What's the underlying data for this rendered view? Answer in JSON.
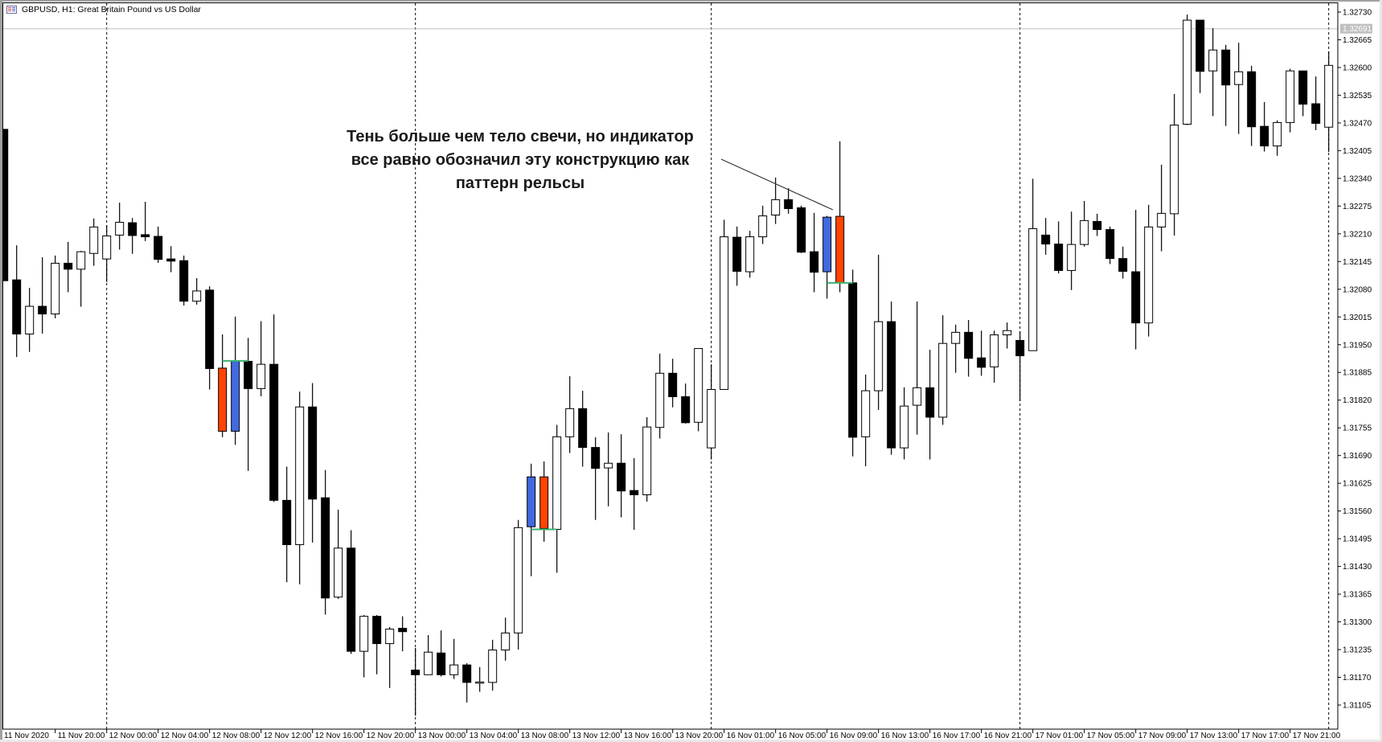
{
  "window": {
    "title": "GBPUSD, H1:  Great Britain Pound vs US Dollar",
    "icon": "chart-window-icon"
  },
  "annotation": {
    "lines": [
      "Тень больше чем тело свечи, но индикатор",
      "все равно обозначил эту конструкцию как",
      "паттерн рельсы"
    ]
  },
  "colors": {
    "bull_body": "#ffffff",
    "bear_body": "#000000",
    "rails_bull": "#4169e1",
    "rails_bear": "#ff4500",
    "rails_level": "#3cb371",
    "bid_line": "#c0c0c0"
  },
  "chart_data": {
    "type": "candlestick",
    "symbol": "GBPUSD",
    "timeframe": "H1",
    "ylim": [
      1.31105,
      1.3273
    ],
    "grid": false,
    "bid_label": "1.32691",
    "bid": 1.32691,
    "price_ticks": [
      "1.32730",
      "1.32665",
      "1.32600",
      "1.32535",
      "1.32470",
      "1.32405",
      "1.32340",
      "1.32275",
      "1.32210",
      "1.32145",
      "1.32080",
      "1.32015",
      "1.31950",
      "1.31885",
      "1.31820",
      "1.31755",
      "1.31690",
      "1.31625",
      "1.31560",
      "1.31495",
      "1.31430",
      "1.31365",
      "1.31300",
      "1.31235",
      "1.31170",
      "1.31105"
    ],
    "time_ticks": [
      "11 Nov 2020",
      "11 Nov 20:00",
      "12 Nov 00:00",
      "12 Nov 04:00",
      "12 Nov 08:00",
      "12 Nov 12:00",
      "12 Nov 16:00",
      "12 Nov 20:00",
      "13 Nov 00:00",
      "13 Nov 04:00",
      "13 Nov 08:00",
      "13 Nov 12:00",
      "13 Nov 16:00",
      "13 Nov 20:00",
      "16 Nov 01:00",
      "16 Nov 05:00",
      "16 Nov 09:00",
      "16 Nov 13:00",
      "16 Nov 17:00",
      "16 Nov 21:00",
      "17 Nov 01:00",
      "17 Nov 05:00",
      "17 Nov 09:00",
      "17 Nov 13:00",
      "17 Nov 17:00",
      "17 Nov 21:00"
    ],
    "ohlc_columns": [
      "open",
      "high",
      "low",
      "close"
    ],
    "candles": [
      [
        1.32455,
        1.32455,
        1.321,
        1.321
      ],
      [
        1.32102,
        1.32183,
        1.31921,
        1.31975
      ],
      [
        1.31975,
        1.32083,
        1.31933,
        1.3204
      ],
      [
        1.3204,
        1.32155,
        1.31976,
        1.32022
      ],
      [
        1.32022,
        1.32159,
        1.32012,
        1.32141
      ],
      [
        1.32141,
        1.32191,
        1.32073,
        1.32127
      ],
      [
        1.32127,
        1.3217,
        1.32039,
        1.32168
      ],
      [
        1.32164,
        1.32246,
        1.32135,
        1.32226
      ],
      [
        1.32151,
        1.3223,
        1.32097,
        1.32205
      ],
      [
        1.32207,
        1.32283,
        1.32173,
        1.32237
      ],
      [
        1.32236,
        1.32247,
        1.32163,
        1.32206
      ],
      [
        1.32208,
        1.32285,
        1.32193,
        1.32203
      ],
      [
        1.32204,
        1.32227,
        1.32142,
        1.3215
      ],
      [
        1.32151,
        1.32181,
        1.3212,
        1.32146
      ],
      [
        1.32147,
        1.32159,
        1.32042,
        1.32052
      ],
      [
        1.32052,
        1.32106,
        1.32044,
        1.32076
      ],
      [
        1.32078,
        1.32087,
        1.31845,
        1.31894
      ],
      [
        1.31895,
        1.31974,
        1.31733,
        1.31747
      ],
      [
        1.31747,
        1.32016,
        1.31715,
        1.31912
      ],
      [
        1.31911,
        1.31966,
        1.31654,
        1.31847
      ],
      [
        1.31847,
        1.32005,
        1.31829,
        1.31904
      ],
      [
        1.31904,
        1.32021,
        1.31581,
        1.31585
      ],
      [
        1.31585,
        1.31664,
        1.31393,
        1.31481
      ],
      [
        1.31481,
        1.3184,
        1.31388,
        1.31804
      ],
      [
        1.31804,
        1.3186,
        1.31486,
        1.31588
      ],
      [
        1.31591,
        1.31656,
        1.31317,
        1.31356
      ],
      [
        1.31358,
        1.31563,
        1.31354,
        1.31473
      ],
      [
        1.31473,
        1.31515,
        1.31225,
        1.31231
      ],
      [
        1.31231,
        1.31316,
        1.3117,
        1.31313
      ],
      [
        1.31313,
        1.31316,
        1.31177,
        1.31249
      ],
      [
        1.31249,
        1.31288,
        1.31145,
        1.31283
      ],
      [
        1.31285,
        1.31313,
        1.31231,
        1.31277
      ],
      [
        1.31187,
        1.31239,
        1.3108,
        1.31176
      ],
      [
        1.31176,
        1.31269,
        1.31176,
        1.31229
      ],
      [
        1.31227,
        1.3128,
        1.31172,
        1.31176
      ],
      [
        1.31176,
        1.3126,
        1.31166,
        1.31199
      ],
      [
        1.31199,
        1.31203,
        1.31111,
        1.31158
      ],
      [
        1.31159,
        1.31194,
        1.31136,
        1.31159
      ],
      [
        1.31158,
        1.31258,
        1.31139,
        1.31234
      ],
      [
        1.31234,
        1.3131,
        1.31209,
        1.31274
      ],
      [
        1.31274,
        1.31539,
        1.31235,
        1.31521
      ],
      [
        1.31523,
        1.31671,
        1.31407,
        1.3164
      ],
      [
        1.3164,
        1.31676,
        1.31488,
        1.31519
      ],
      [
        1.31517,
        1.31762,
        1.31415,
        1.31734
      ],
      [
        1.31734,
        1.31876,
        1.31696,
        1.318
      ],
      [
        1.318,
        1.31842,
        1.31664,
        1.31709
      ],
      [
        1.31709,
        1.31733,
        1.31539,
        1.3166
      ],
      [
        1.31661,
        1.31744,
        1.31571,
        1.31672
      ],
      [
        1.31672,
        1.3174,
        1.31545,
        1.31607
      ],
      [
        1.31608,
        1.31684,
        1.31516,
        1.31598
      ],
      [
        1.31598,
        1.3178,
        1.31582,
        1.31757
      ],
      [
        1.31756,
        1.31929,
        1.3173,
        1.31883
      ],
      [
        1.31883,
        1.31917,
        1.31803,
        1.31828
      ],
      [
        1.31828,
        1.31859,
        1.31765,
        1.31767
      ],
      [
        1.31768,
        1.31941,
        1.31747,
        1.31941
      ],
      [
        1.31708,
        1.31904,
        1.31681,
        1.31845
      ],
      [
        1.31845,
        1.32243,
        1.31845,
        1.32203
      ],
      [
        1.32202,
        1.32227,
        1.32088,
        1.32122
      ],
      [
        1.32121,
        1.32217,
        1.32107,
        1.32203
      ],
      [
        1.32203,
        1.32276,
        1.32186,
        1.32252
      ],
      [
        1.32254,
        1.32342,
        1.32233,
        1.3229
      ],
      [
        1.3229,
        1.32317,
        1.32257,
        1.32269
      ],
      [
        1.32271,
        1.32276,
        1.32165,
        1.32167
      ],
      [
        1.32168,
        1.32259,
        1.32073,
        1.3212
      ],
      [
        1.32121,
        1.32252,
        1.32058,
        1.32249
      ],
      [
        1.32251,
        1.32427,
        1.32073,
        1.32095
      ],
      [
        1.32095,
        1.32126,
        1.31688,
        1.31733
      ],
      [
        1.31734,
        1.3188,
        1.31665,
        1.31842
      ],
      [
        1.31842,
        1.32161,
        1.31797,
        1.32004
      ],
      [
        1.32004,
        1.32051,
        1.31692,
        1.31708
      ],
      [
        1.31708,
        1.3185,
        1.31681,
        1.31806
      ],
      [
        1.31808,
        1.32051,
        1.31739,
        1.31849
      ],
      [
        1.31849,
        1.31938,
        1.31681,
        1.3178
      ],
      [
        1.3178,
        1.32019,
        1.31762,
        1.31953
      ],
      [
        1.31953,
        1.31997,
        1.31884,
        1.31979
      ],
      [
        1.31979,
        1.32008,
        1.31875,
        1.31918
      ],
      [
        1.31919,
        1.31983,
        1.31877,
        1.31897
      ],
      [
        1.31898,
        1.31983,
        1.31861,
        1.31973
      ],
      [
        1.31973,
        1.32002,
        1.31941,
        1.31983
      ],
      [
        1.3196,
        1.31981,
        1.31818,
        1.31924
      ],
      [
        1.31936,
        1.32339,
        1.31936,
        1.32222
      ],
      [
        1.32207,
        1.32247,
        1.32161,
        1.32186
      ],
      [
        1.32186,
        1.32239,
        1.32117,
        1.32124
      ],
      [
        1.32124,
        1.32262,
        1.32078,
        1.32185
      ],
      [
        1.32185,
        1.32287,
        1.3218,
        1.32241
      ],
      [
        1.32239,
        1.32257,
        1.32205,
        1.3222
      ],
      [
        1.3222,
        1.32227,
        1.32139,
        1.32152
      ],
      [
        1.32152,
        1.3218,
        1.32105,
        1.32122
      ],
      [
        1.32121,
        1.32266,
        1.31939,
        1.32001
      ],
      [
        1.32001,
        1.32278,
        1.31969,
        1.32226
      ],
      [
        1.32226,
        1.32372,
        1.32169,
        1.32258
      ],
      [
        1.32257,
        1.32538,
        1.32206,
        1.32465
      ],
      [
        1.32467,
        1.32724,
        1.32465,
        1.32711
      ],
      [
        1.32711,
        1.32711,
        1.3254,
        1.32591
      ],
      [
        1.32592,
        1.32692,
        1.32486,
        1.32641
      ],
      [
        1.32641,
        1.32653,
        1.32463,
        1.32559
      ],
      [
        1.3256,
        1.32658,
        1.32444,
        1.3259
      ],
      [
        1.3259,
        1.32604,
        1.32416,
        1.32461
      ],
      [
        1.32462,
        1.32519,
        1.32403,
        1.32416
      ],
      [
        1.32416,
        1.32476,
        1.32393,
        1.32471
      ],
      [
        1.32471,
        1.32597,
        1.32448,
        1.32592
      ],
      [
        1.32592,
        1.32592,
        1.32486,
        1.32514
      ],
      [
        1.32515,
        1.32579,
        1.32453,
        1.32469
      ],
      [
        1.3246,
        1.32638,
        1.32402,
        1.32605
      ]
    ],
    "rails_patterns": [
      {
        "bars": [
          17,
          18
        ],
        "level": 1.31912
      },
      {
        "bars": [
          41,
          42
        ],
        "level": 1.31517
      },
      {
        "bars": [
          64,
          65
        ],
        "level": 1.32095
      }
    ]
  }
}
